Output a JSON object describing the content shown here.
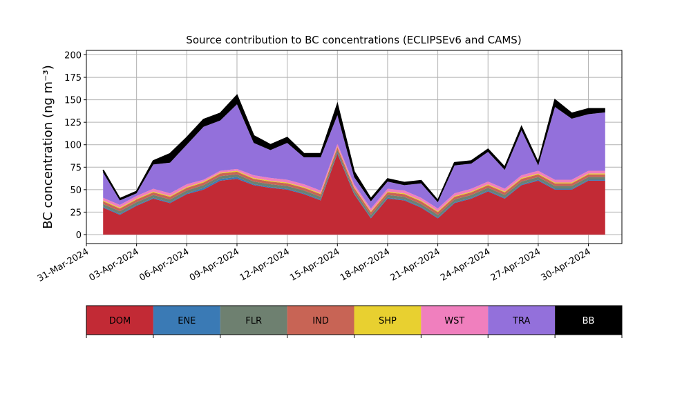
{
  "chart_data": {
    "type": "stacked_area",
    "title": "Source contribution to BC concentrations (ECLIPSEv6 and CAMS)",
    "ylabel": "BC concentration (ng m⁻³)",
    "x": [
      "2024-04-01",
      "2024-04-02",
      "2024-04-03",
      "2024-04-04",
      "2024-04-05",
      "2024-04-06",
      "2024-04-07",
      "2024-04-08",
      "2024-04-09",
      "2024-04-10",
      "2024-04-11",
      "2024-04-12",
      "2024-04-13",
      "2024-04-14",
      "2024-04-15",
      "2024-04-16",
      "2024-04-17",
      "2024-04-18",
      "2024-04-19",
      "2024-04-20",
      "2024-04-21",
      "2024-04-22",
      "2024-04-23",
      "2024-04-24",
      "2024-04-25",
      "2024-04-26",
      "2024-04-27",
      "2024-04-28",
      "2024-04-29",
      "2024-04-30",
      "2024-05-01"
    ],
    "series": [
      {
        "name": "DOM",
        "color": "#c22a35",
        "values": [
          30,
          22,
          32,
          40,
          35,
          45,
          50,
          60,
          62,
          55,
          52,
          50,
          45,
          38,
          90,
          45,
          18,
          40,
          38,
          30,
          18,
          35,
          40,
          48,
          40,
          55,
          60,
          50,
          50,
          60,
          60
        ]
      },
      {
        "name": "ENE",
        "color": "#3a7ab5",
        "values": [
          1,
          1,
          1,
          1,
          1,
          1,
          2,
          2,
          2,
          1,
          1,
          1,
          1,
          1,
          1,
          1,
          1,
          1,
          1,
          1,
          1,
          1,
          1,
          1,
          1,
          1,
          1,
          1,
          1,
          1,
          1
        ]
      },
      {
        "name": "FLR",
        "color": "#6e8070",
        "values": [
          3,
          3,
          3,
          3,
          3,
          3,
          3,
          3,
          3,
          3,
          3,
          3,
          3,
          3,
          3,
          3,
          3,
          3,
          3,
          3,
          3,
          3,
          3,
          3,
          3,
          3,
          3,
          3,
          3,
          3,
          3
        ]
      },
      {
        "name": "IND",
        "color": "#c86455",
        "values": [
          3,
          3,
          3,
          3,
          3,
          3,
          3,
          3,
          3,
          3,
          3,
          3,
          3,
          3,
          3,
          3,
          3,
          3,
          3,
          3,
          3,
          3,
          3,
          3,
          3,
          3,
          3,
          3,
          3,
          3,
          3
        ]
      },
      {
        "name": "SHP",
        "color": "#e8d030",
        "values": [
          1,
          1,
          1,
          1,
          1,
          1,
          1,
          1,
          1,
          1,
          1,
          1,
          1,
          1,
          1,
          1,
          1,
          1,
          1,
          1,
          1,
          1,
          1,
          1,
          1,
          1,
          1,
          1,
          1,
          1,
          1
        ]
      },
      {
        "name": "WST",
        "color": "#f07fbe",
        "values": [
          3,
          3,
          3,
          3,
          3,
          3,
          2,
          2,
          2,
          3,
          3,
          3,
          3,
          3,
          3,
          3,
          3,
          3,
          3,
          3,
          3,
          3,
          3,
          3,
          3,
          3,
          3,
          3,
          3,
          3,
          3
        ]
      },
      {
        "name": "TRA",
        "color": "#9370db",
        "values": [
          28,
          5,
          3,
          27,
          34,
          44,
          59,
          56,
          72,
          36,
          31,
          41,
          30,
          37,
          32,
          8,
          8,
          8,
          6,
          16,
          7,
          31,
          28,
          33,
          21,
          50,
          6,
          81,
          68,
          63,
          65
        ]
      },
      {
        "name": "BB",
        "color": "#000000",
        "values": [
          3,
          2,
          2,
          4,
          10,
          8,
          8,
          8,
          10,
          8,
          6,
          6,
          4,
          4,
          12,
          6,
          3,
          3,
          3,
          3,
          2,
          3,
          3,
          3,
          3,
          4,
          3,
          8,
          6,
          6,
          4
        ]
      }
    ],
    "xlim": [
      "2024-03-31",
      "2024-05-02"
    ],
    "xticks": [
      {
        "value": "2024-03-31",
        "label": "31-Mar-2024"
      },
      {
        "value": "2024-04-03",
        "label": "03-Apr-2024"
      },
      {
        "value": "2024-04-06",
        "label": "06-Apr-2024"
      },
      {
        "value": "2024-04-09",
        "label": "09-Apr-2024"
      },
      {
        "value": "2024-04-12",
        "label": "12-Apr-2024"
      },
      {
        "value": "2024-04-15",
        "label": "15-Apr-2024"
      },
      {
        "value": "2024-04-18",
        "label": "18-Apr-2024"
      },
      {
        "value": "2024-04-21",
        "label": "21-Apr-2024"
      },
      {
        "value": "2024-04-24",
        "label": "24-Apr-2024"
      },
      {
        "value": "2024-04-27",
        "label": "27-Apr-2024"
      },
      {
        "value": "2024-04-30",
        "label": "30-Apr-2024"
      }
    ],
    "ylim": [
      -10,
      205
    ],
    "yticks": [
      0,
      25,
      50,
      75,
      100,
      125,
      150,
      175,
      200
    ],
    "grid": true,
    "legend": "below"
  }
}
